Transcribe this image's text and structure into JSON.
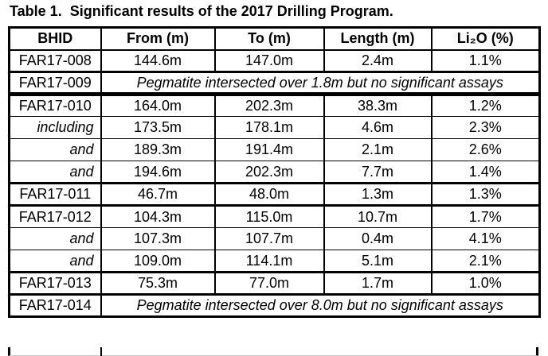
{
  "title": "Table 1.  Significant results of the 2017 Drilling Program.",
  "colors": {
    "background": "#ffffff",
    "text": "#000000",
    "border": "#000000"
  },
  "table": {
    "columns": [
      "BHID",
      "From (m)",
      "To (m)",
      "Length (m)",
      "Li₂O (%)"
    ],
    "rows": [
      {
        "bhid": "FAR17-008",
        "from": "144.6m",
        "to": "147.0m",
        "length": "2.4m",
        "li2o": "1.1%",
        "bhid_style": "hole",
        "separator": "thick"
      },
      {
        "bhid": "FAR17-009",
        "note": "Pegmatite intersected over 1.8m but no significant assays",
        "bhid_style": "hole",
        "separator": "xthick"
      },
      {
        "bhid": "FAR17-010",
        "from": "164.0m",
        "to": "202.3m",
        "length": "38.3m",
        "li2o": "1.2%",
        "bhid_style": "hole",
        "separator": "thin"
      },
      {
        "bhid": "including",
        "from": "173.5m",
        "to": "178.1m",
        "length": "4.6m",
        "li2o": "2.3%",
        "bhid_style": "qualifier",
        "separator": "thin"
      },
      {
        "bhid": "and",
        "from": "189.3m",
        "to": "191.4m",
        "length": "2.1m",
        "li2o": "2.6%",
        "bhid_style": "qualifier",
        "separator": "thin"
      },
      {
        "bhid": "and",
        "from": "194.6m",
        "to": "202.3m",
        "length": "7.7m",
        "li2o": "1.4%",
        "bhid_style": "qualifier",
        "separator": "thick"
      },
      {
        "bhid": "FAR17-011",
        "from": "46.7m",
        "to": "48.0m",
        "length": "1.3m",
        "li2o": "1.3%",
        "bhid_style": "hole",
        "separator": "thick"
      },
      {
        "bhid": "FAR17-012",
        "from": "104.3m",
        "to": "115.0m",
        "length": "10.7m",
        "li2o": "1.7%",
        "bhid_style": "hole",
        "separator": "thin"
      },
      {
        "bhid": "and",
        "from": "107.3m",
        "to": "107.7m",
        "length": "0.4m",
        "li2o": "4.1%",
        "bhid_style": "qualifier",
        "separator": "thin"
      },
      {
        "bhid": "and",
        "from": "109.0m",
        "to": "114.1m",
        "length": "5.1m",
        "li2o": "2.1%",
        "bhid_style": "qualifier",
        "separator": "thick"
      },
      {
        "bhid": "FAR17-013",
        "from": "75.3m",
        "to": "77.0m",
        "length": "1.7m",
        "li2o": "1.0%",
        "bhid_style": "hole",
        "separator": "thick"
      },
      {
        "bhid": "FAR17-014",
        "note": "Pegmatite intersected over 8.0m but no significant assays",
        "bhid_style": "hole",
        "separator": "thick"
      }
    ]
  }
}
